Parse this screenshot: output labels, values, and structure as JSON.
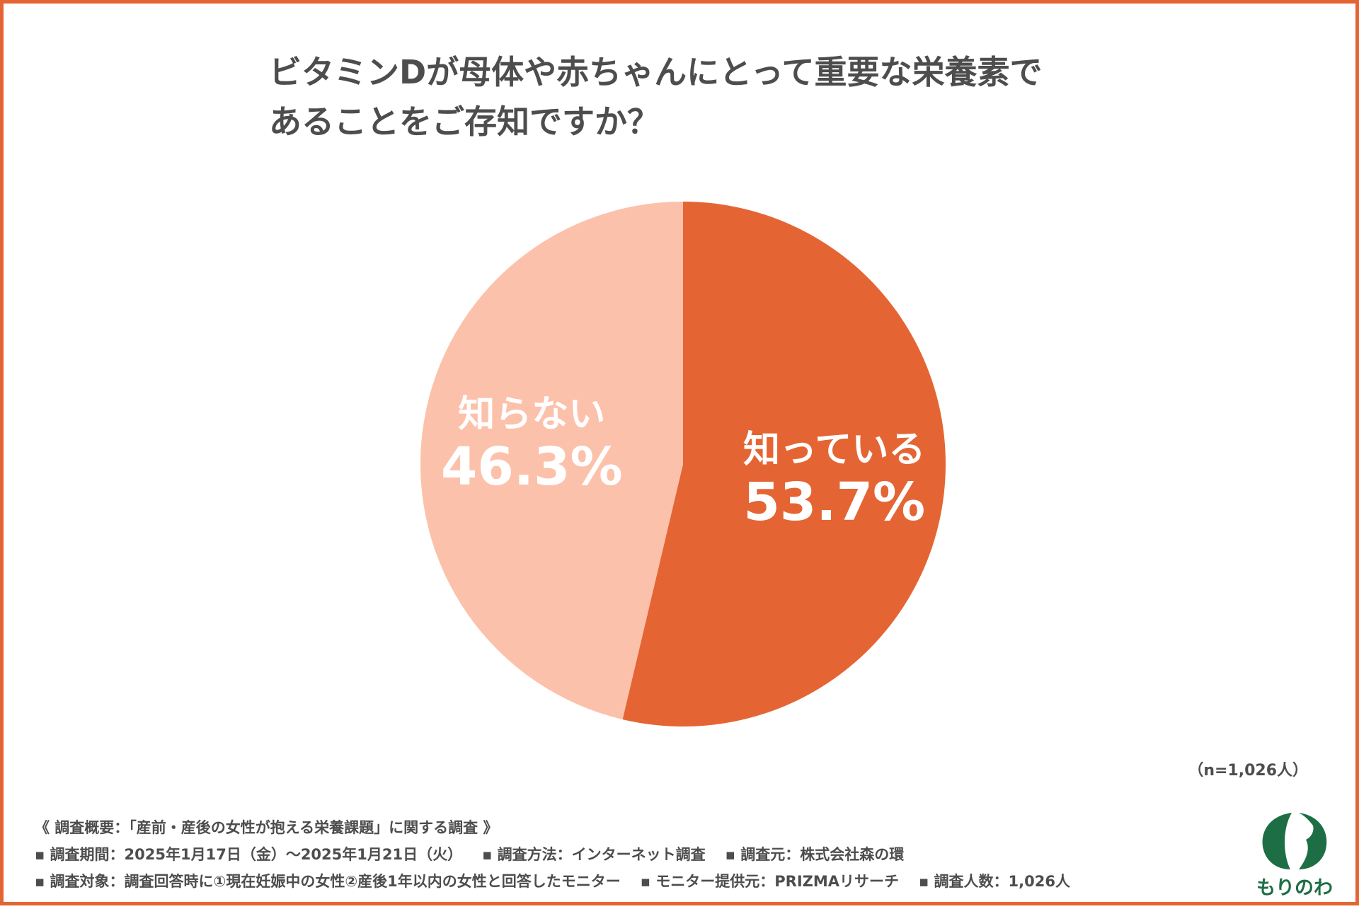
{
  "title": {
    "line1": "ビタミンDが母体や赤ちゃんにとって重要な栄養素で",
    "line2": "あることをご存知ですか？"
  },
  "chart_data": {
    "type": "pie",
    "title": "ビタミンDが母体や赤ちゃんにとって重要な栄養素であることをご存知ですか？",
    "slices": [
      {
        "label": "知っている",
        "value": 53.7,
        "display": "53.7%",
        "color": "#e46533"
      },
      {
        "label": "知らない",
        "value": 46.3,
        "display": "46.3%",
        "color": "#fcc1aa"
      }
    ],
    "start": "12 o'clock",
    "direction": "clockwise"
  },
  "sample_note": "（n=1,026人）",
  "survey": {
    "header": "《 調査概要：「産前・産後の女性が抱える栄養課題」に関する調査 》",
    "period": "▪ 調査期間：2025年1月17日（金）〜2025年1月21日（火）",
    "method": "▪ 調査方法：インターネット調査",
    "source": "▪ 調査元：株式会社森の環",
    "target": "▪ 調査対象：調査回答時に①現在妊娠中の女性②産後1年以内の女性と回答したモニター",
    "provider": "▪ モニター提供元：PRIZMAリサーチ",
    "count": "▪ 調査人数：1,026人"
  },
  "logo": {
    "text": "もりのわ",
    "icon": "leaf-logo-icon",
    "color": "#1e6e45"
  }
}
